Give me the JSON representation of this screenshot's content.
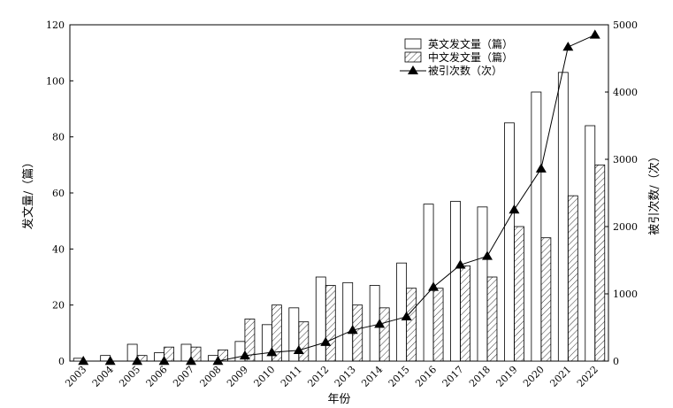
{
  "chart_data": {
    "type": "bar",
    "categories": [
      "2003",
      "2004",
      "2005",
      "2006",
      "2007",
      "2008",
      "2009",
      "2010",
      "2011",
      "2012",
      "2013",
      "2014",
      "2015",
      "2016",
      "2017",
      "2018",
      "2019",
      "2020",
      "2021",
      "2022"
    ],
    "series": [
      {
        "name": "英文发文量（篇）",
        "type": "bar",
        "axis": "left",
        "pattern": "open",
        "values": [
          1,
          2,
          6,
          3,
          6,
          2,
          7,
          13,
          19,
          30,
          28,
          27,
          35,
          56,
          57,
          55,
          85,
          96,
          103,
          84
        ]
      },
      {
        "name": "中文发文量（篇）",
        "type": "bar",
        "axis": "left",
        "pattern": "hatched",
        "values": [
          0,
          0,
          2,
          5,
          5,
          4,
          15,
          20,
          14,
          27,
          20,
          19,
          26,
          26,
          34,
          30,
          48,
          44,
          59,
          70
        ]
      },
      {
        "name": "被引次数（次）",
        "type": "line",
        "axis": "right",
        "marker": "triangle",
        "values": [
          0,
          0,
          0,
          0,
          0,
          0,
          80,
          130,
          160,
          280,
          460,
          550,
          660,
          1100,
          1430,
          1560,
          2250,
          2860,
          4670,
          4850
        ]
      }
    ],
    "xlabel": "年份",
    "ylabel": "发文量/（篇）",
    "y2label": "被引次数/（次）",
    "ylim": [
      0,
      120
    ],
    "y2lim": [
      0,
      5000
    ],
    "yticks": [
      0,
      20,
      40,
      60,
      80,
      100,
      120
    ],
    "y2ticks": [
      0,
      1000,
      2000,
      3000,
      4000,
      5000
    ],
    "grid": false,
    "legend_position": "top-right"
  }
}
